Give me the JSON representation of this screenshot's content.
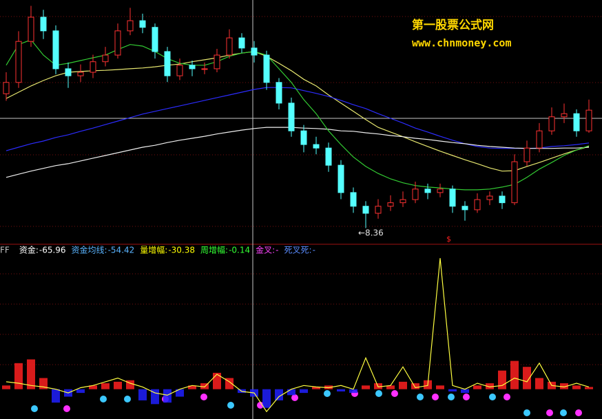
{
  "chart_data": [
    {
      "type": "candlestick",
      "watermark": [
        "第一股票公式网",
        "www.chnmoney.com"
      ],
      "low_annotation": "←8.36",
      "signal_mark": "$",
      "ylim": [
        8.0,
        14.2
      ],
      "up_color": "#ff3232",
      "down_color": "#54ffff",
      "open": [
        11.8,
        12.09,
        13.14,
        13.76,
        13.41,
        12.44,
        12.26,
        12.35,
        12.62,
        12.79,
        13.41,
        13.67,
        13.5,
        12.88,
        12.26,
        12.53,
        12.44,
        12.44,
        12.79,
        13.23,
        12.97,
        12.79,
        12.09,
        11.56,
        10.85,
        10.5,
        10.41,
        9.97,
        9.27,
        8.92,
        8.74,
        8.92,
        9.01,
        9.09,
        9.36,
        9.27,
        9.36,
        8.92,
        8.83,
        9.09,
        9.18,
        9.01,
        10.06,
        10.41,
        10.85,
        11.21,
        11.29,
        10.85
      ],
      "high": [
        12.35,
        13.4,
        14.05,
        13.95,
        13.55,
        12.6,
        12.55,
        12.8,
        13.0,
        13.6,
        14.0,
        13.85,
        13.6,
        13.0,
        12.7,
        12.65,
        12.6,
        12.95,
        13.45,
        13.35,
        13.15,
        12.9,
        12.2,
        11.7,
        11.0,
        10.7,
        10.55,
        10.1,
        9.4,
        9.05,
        9.1,
        9.2,
        9.3,
        9.55,
        9.5,
        9.5,
        9.45,
        9.05,
        9.25,
        9.3,
        9.3,
        10.25,
        10.6,
        11.05,
        11.45,
        11.55,
        11.4,
        11.65
      ],
      "low": [
        11.62,
        11.95,
        13.0,
        13.2,
        12.3,
        11.95,
        12.1,
        12.2,
        12.5,
        12.7,
        13.3,
        13.35,
        12.7,
        12.1,
        12.15,
        12.25,
        12.3,
        12.35,
        12.7,
        12.85,
        12.6,
        11.9,
        11.4,
        10.7,
        10.3,
        10.25,
        9.8,
        9.1,
        8.75,
        8.36,
        8.6,
        8.8,
        8.9,
        9.0,
        9.1,
        9.15,
        8.75,
        8.55,
        8.75,
        8.95,
        8.85,
        8.95,
        9.95,
        10.3,
        10.75,
        11.05,
        10.7,
        10.8
      ],
      "close": [
        12.09,
        13.14,
        13.76,
        13.41,
        12.44,
        12.26,
        12.35,
        12.62,
        12.79,
        13.41,
        13.67,
        13.5,
        12.88,
        12.26,
        12.53,
        12.44,
        12.44,
        12.79,
        13.23,
        12.97,
        12.79,
        12.09,
        11.56,
        10.85,
        10.5,
        10.41,
        9.97,
        9.27,
        8.92,
        8.74,
        8.92,
        9.01,
        9.09,
        9.36,
        9.27,
        9.36,
        8.92,
        8.83,
        9.09,
        9.18,
        9.01,
        10.06,
        10.41,
        10.85,
        11.21,
        11.29,
        10.85,
        11.38
      ],
      "series": [
        {
          "color": "#e8e870",
          "values": [
            11.68,
            11.84,
            12.0,
            12.14,
            12.26,
            12.35,
            12.37,
            12.39,
            12.4,
            12.42,
            12.44,
            12.46,
            12.49,
            12.53,
            12.56,
            12.62,
            12.67,
            12.72,
            12.79,
            12.84,
            12.88,
            12.76,
            12.58,
            12.39,
            12.17,
            12.0,
            11.77,
            11.56,
            11.35,
            11.14,
            10.94,
            10.82,
            10.7,
            10.57,
            10.45,
            10.33,
            10.22,
            10.11,
            10.01,
            9.9,
            9.82,
            9.83,
            9.94,
            10.04,
            10.15,
            10.26,
            10.36,
            10.45
          ]
        },
        {
          "color": "#2c2cff",
          "values": [
            10.34,
            10.43,
            10.52,
            10.59,
            10.68,
            10.75,
            10.84,
            10.92,
            11.01,
            11.1,
            11.19,
            11.28,
            11.35,
            11.42,
            11.49,
            11.56,
            11.63,
            11.7,
            11.77,
            11.84,
            11.91,
            11.96,
            11.96,
            11.95,
            11.88,
            11.81,
            11.73,
            11.63,
            11.52,
            11.42,
            11.29,
            11.17,
            11.05,
            10.92,
            10.82,
            10.71,
            10.61,
            10.52,
            10.45,
            10.41,
            10.4,
            10.4,
            10.4,
            10.41,
            10.45,
            10.47,
            10.5,
            10.54
          ]
        },
        {
          "color": "#f0f0f0",
          "values": [
            9.66,
            9.74,
            9.82,
            9.89,
            9.96,
            10.01,
            10.08,
            10.15,
            10.22,
            10.29,
            10.36,
            10.43,
            10.48,
            10.55,
            10.61,
            10.66,
            10.71,
            10.77,
            10.82,
            10.87,
            10.91,
            10.94,
            10.94,
            10.94,
            10.92,
            10.91,
            10.89,
            10.85,
            10.84,
            10.8,
            10.77,
            10.73,
            10.7,
            10.66,
            10.63,
            10.59,
            10.55,
            10.52,
            10.48,
            10.45,
            10.43,
            10.41,
            10.4,
            10.4,
            10.4,
            10.41,
            10.41,
            10.43
          ]
        },
        {
          "color": "#33cc33",
          "values": [
            12.53,
            13.06,
            13.18,
            12.79,
            12.53,
            12.58,
            12.65,
            12.72,
            12.79,
            12.93,
            13.06,
            13.02,
            12.88,
            12.7,
            12.58,
            12.53,
            12.53,
            12.62,
            12.76,
            12.84,
            12.88,
            12.79,
            12.44,
            12.09,
            11.65,
            11.29,
            10.85,
            10.5,
            10.18,
            9.94,
            9.76,
            9.62,
            9.52,
            9.45,
            9.41,
            9.39,
            9.36,
            9.34,
            9.34,
            9.36,
            9.41,
            9.48,
            9.66,
            9.87,
            10.04,
            10.22,
            10.36,
            10.47
          ]
        }
      ]
    },
    {
      "type": "indicator",
      "name": "FF",
      "labels": [
        {
          "label": "资金:",
          "value": -65.96,
          "color": "#ffffff"
        },
        {
          "label": "资金均线:",
          "value": -54.42,
          "color": "#5ab4ff"
        },
        {
          "label": "量增幅:",
          "value": -30.38,
          "color": "#ffff00"
        },
        {
          "label": "周增幅:",
          "value": -0.14,
          "color": "#33ff33"
        },
        {
          "label": "金叉:",
          "value": "-",
          "color": "#ff44ff"
        },
        {
          "label": "死叉死:",
          "value": "-",
          "color": "#5a8cff"
        }
      ],
      "ylim": [
        -40,
        190
      ],
      "bar_up_color": "#ff2020",
      "bar_down_color": "#2020ff",
      "bars": [
        5,
        35,
        40,
        15,
        -18,
        -10,
        -5,
        5,
        8,
        10,
        12,
        -15,
        -20,
        -18,
        -10,
        5,
        8,
        22,
        15,
        -5,
        -10,
        -25,
        -15,
        -8,
        -5,
        3,
        5,
        -3,
        -5,
        5,
        8,
        5,
        10,
        8,
        12,
        5,
        -3,
        -5,
        5,
        8,
        25,
        38,
        30,
        15,
        10,
        8,
        5,
        3
      ],
      "line_color": "#ffff40",
      "line": [
        10,
        8,
        5,
        3,
        0,
        -5,
        2,
        5,
        10,
        15,
        8,
        3,
        -5,
        -8,
        0,
        5,
        3,
        20,
        10,
        -3,
        -5,
        -30,
        -10,
        0,
        5,
        3,
        2,
        5,
        0,
        42,
        3,
        5,
        30,
        2,
        5,
        176,
        5,
        0,
        8,
        3,
        5,
        15,
        10,
        35,
        5,
        3,
        8,
        3
      ]
    }
  ]
}
